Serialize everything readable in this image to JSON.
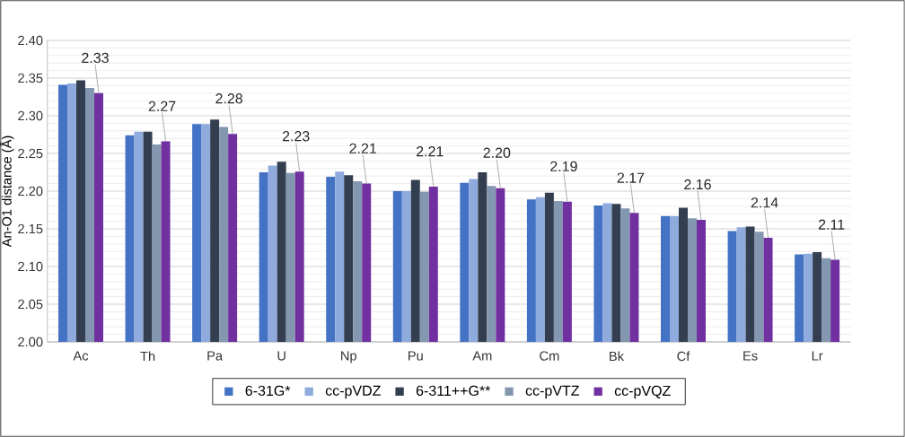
{
  "chart_data": {
    "type": "bar",
    "ylabel": "An-O1 distance (Å)",
    "categories": [
      "Ac",
      "Th",
      "Pa",
      "U",
      "Np",
      "Pu",
      "Am",
      "Cm",
      "Bk",
      "Cf",
      "Es",
      "Lr"
    ],
    "series": [
      {
        "name": "6-31G*",
        "color": "#4472c4",
        "values": [
          2.341,
          2.274,
          2.289,
          2.225,
          2.219,
          2.2,
          2.211,
          2.189,
          2.181,
          2.167,
          2.147,
          2.116
        ]
      },
      {
        "name": "cc-pVDZ",
        "color": "#8faadc",
        "values": [
          2.343,
          2.279,
          2.289,
          2.234,
          2.226,
          2.2,
          2.216,
          2.192,
          2.184,
          2.167,
          2.152,
          2.117
        ]
      },
      {
        "name": "6-311++G**",
        "color": "#333f50",
        "values": [
          2.347,
          2.279,
          2.295,
          2.239,
          2.221,
          2.215,
          2.225,
          2.198,
          2.183,
          2.178,
          2.153,
          2.119
        ]
      },
      {
        "name": "cc-pVTZ",
        "color": "#8497b0",
        "values": [
          2.337,
          2.262,
          2.285,
          2.224,
          2.213,
          2.199,
          2.207,
          2.187,
          2.177,
          2.164,
          2.146,
          2.111
        ]
      },
      {
        "name": "cc-pVQZ",
        "color": "#7030a0",
        "values": [
          2.33,
          2.266,
          2.276,
          2.226,
          2.21,
          2.206,
          2.204,
          2.186,
          2.171,
          2.162,
          2.138,
          2.109
        ],
        "value_labels": [
          "2.33",
          "2.27",
          "2.28",
          "2.23",
          "2.21",
          "2.21",
          "2.20",
          "2.19",
          "2.17",
          "2.16",
          "2.14",
          "2.11"
        ]
      }
    ],
    "ylim": [
      2.0,
      2.4
    ],
    "yticks": [
      {
        "value": 2.0,
        "label": "2.00"
      },
      {
        "value": 2.05,
        "label": "2.05"
      },
      {
        "value": 2.1,
        "label": "2.10"
      },
      {
        "value": 2.15,
        "label": "2.15"
      },
      {
        "value": 2.2,
        "label": "2.20"
      },
      {
        "value": 2.25,
        "label": "2.25"
      },
      {
        "value": 2.3,
        "label": "2.30"
      },
      {
        "value": 2.35,
        "label": "2.35"
      },
      {
        "value": 2.4,
        "label": "2.40"
      }
    ],
    "grid": "y",
    "legend": "bottom"
  }
}
